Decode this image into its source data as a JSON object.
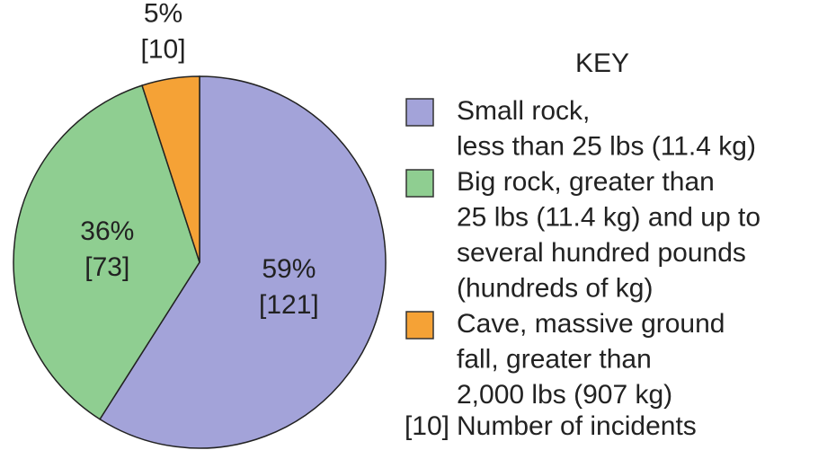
{
  "chart_data": {
    "type": "pie",
    "values": [
      59,
      36,
      5
    ],
    "value_labels": [
      "59%",
      "36%",
      "5%"
    ],
    "count_labels": [
      "[121]",
      "[73]",
      "[10]"
    ],
    "colors": [
      "#a3a3d9",
      "#8fce91",
      "#f5a236"
    ],
    "legend_title": "KEY",
    "categories": [
      [
        "Small rock,",
        "less than 25 lbs (11.4 kg)"
      ],
      [
        "Big rock, greater than",
        "25 lbs (11.4 kg) and up to",
        "several hundred pounds",
        "(hundreds of kg)"
      ],
      [
        "Cave, massive ground",
        "fall, greater than",
        "2,000 lbs (907 kg)"
      ]
    ],
    "key_note": {
      "symbol": "[10]",
      "text": "Number of incidents"
    },
    "legend": "right"
  }
}
